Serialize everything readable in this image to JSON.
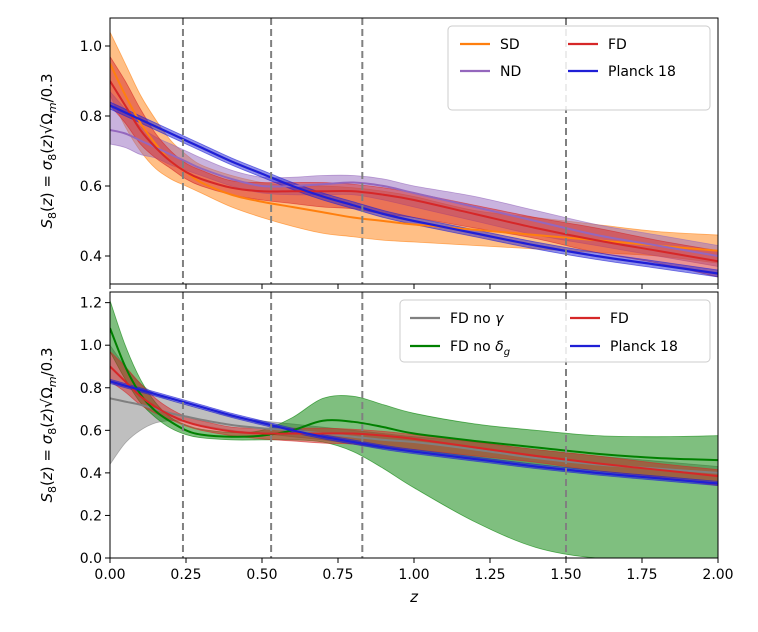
{
  "chart_data": [
    {
      "type": "line",
      "ylabel": "S₈(z) = σ₈(z)√(Ωₘ/0.3)",
      "xlabel": "",
      "xlim": [
        0.0,
        2.0
      ],
      "ylim": [
        0.32,
        1.08
      ],
      "yticks": [
        0.4,
        0.6,
        0.8,
        1.0
      ],
      "ytick_labels": [
        "0.4",
        "0.6",
        "0.8",
        "1.0"
      ],
      "vlines": [
        0.24,
        0.53,
        0.83,
        1.5
      ],
      "legend_position": "top-right",
      "legend_columns": 2,
      "x": [
        0.0,
        0.05,
        0.1,
        0.15,
        0.2,
        0.25,
        0.3,
        0.4,
        0.5,
        0.6,
        0.7,
        0.8,
        0.9,
        1.0,
        1.2,
        1.4,
        1.6,
        1.8,
        2.0
      ],
      "series": [
        {
          "name": "SD",
          "color": "#ff7f0e",
          "values": [
            0.95,
            0.86,
            0.78,
            0.72,
            0.67,
            0.64,
            0.61,
            0.575,
            0.555,
            0.54,
            0.525,
            0.51,
            0.5,
            0.49,
            0.475,
            0.46,
            0.445,
            0.43,
            0.415
          ],
          "lower": [
            0.86,
            0.77,
            0.7,
            0.65,
            0.62,
            0.6,
            0.58,
            0.54,
            0.51,
            0.485,
            0.465,
            0.455,
            0.445,
            0.44,
            0.43,
            0.42,
            0.41,
            0.4,
            0.38
          ],
          "upper": [
            1.04,
            0.95,
            0.86,
            0.79,
            0.73,
            0.69,
            0.66,
            0.63,
            0.61,
            0.6,
            0.6,
            0.595,
            0.585,
            0.57,
            0.53,
            0.51,
            0.49,
            0.47,
            0.46
          ]
        },
        {
          "name": "ND",
          "color": "#9467bd",
          "values": [
            0.76,
            0.75,
            0.73,
            0.71,
            0.69,
            0.67,
            0.65,
            0.62,
            0.6,
            0.6,
            0.605,
            0.61,
            0.6,
            0.58,
            0.54,
            0.5,
            0.46,
            0.43,
            0.4
          ],
          "lower": [
            0.72,
            0.71,
            0.69,
            0.68,
            0.66,
            0.645,
            0.63,
            0.6,
            0.58,
            0.575,
            0.575,
            0.575,
            0.56,
            0.54,
            0.5,
            0.46,
            0.43,
            0.4,
            0.37
          ],
          "upper": [
            0.87,
            0.82,
            0.77,
            0.74,
            0.72,
            0.7,
            0.68,
            0.645,
            0.625,
            0.625,
            0.63,
            0.63,
            0.62,
            0.6,
            0.57,
            0.53,
            0.49,
            0.46,
            0.43
          ]
        },
        {
          "name": "FD",
          "color": "#d62728",
          "values": [
            0.9,
            0.83,
            0.76,
            0.71,
            0.67,
            0.64,
            0.62,
            0.595,
            0.585,
            0.585,
            0.585,
            0.585,
            0.575,
            0.56,
            0.52,
            0.48,
            0.445,
            0.415,
            0.385
          ],
          "lower": [
            0.83,
            0.78,
            0.72,
            0.68,
            0.65,
            0.62,
            0.6,
            0.575,
            0.56,
            0.55,
            0.54,
            0.535,
            0.52,
            0.51,
            0.48,
            0.45,
            0.41,
            0.38,
            0.34
          ],
          "upper": [
            0.97,
            0.9,
            0.82,
            0.75,
            0.7,
            0.665,
            0.645,
            0.615,
            0.61,
            0.61,
            0.61,
            0.605,
            0.595,
            0.58,
            0.545,
            0.51,
            0.48,
            0.445,
            0.415
          ]
        },
        {
          "name": "Planck 18",
          "color": "#1f1fd6",
          "values": [
            0.83,
            0.81,
            0.79,
            0.77,
            0.75,
            0.73,
            0.71,
            0.67,
            0.635,
            0.6,
            0.57,
            0.545,
            0.52,
            0.5,
            0.465,
            0.43,
            0.4,
            0.375,
            0.35
          ],
          "lower": [
            0.82,
            0.8,
            0.78,
            0.76,
            0.74,
            0.72,
            0.7,
            0.66,
            0.625,
            0.59,
            0.56,
            0.535,
            0.51,
            0.49,
            0.455,
            0.42,
            0.39,
            0.365,
            0.34
          ],
          "upper": [
            0.84,
            0.82,
            0.8,
            0.78,
            0.76,
            0.74,
            0.72,
            0.68,
            0.645,
            0.61,
            0.58,
            0.555,
            0.53,
            0.51,
            0.475,
            0.44,
            0.41,
            0.385,
            0.36
          ]
        }
      ]
    },
    {
      "type": "line",
      "ylabel": "S₈(z) = σ₈(z)√(Ωₘ/0.3)",
      "xlabel": "z",
      "xlim": [
        0.0,
        2.0
      ],
      "ylim": [
        0.0,
        1.25
      ],
      "yticks": [
        0.0,
        0.2,
        0.4,
        0.6,
        0.8,
        1.0,
        1.2
      ],
      "ytick_labels": [
        "0.0",
        "0.2",
        "0.4",
        "0.6",
        "0.8",
        "1.0",
        "1.2"
      ],
      "xticks": [
        0.0,
        0.25,
        0.5,
        0.75,
        1.0,
        1.25,
        1.5,
        1.75,
        2.0
      ],
      "xtick_labels": [
        "0.00",
        "0.25",
        "0.50",
        "0.75",
        "1.00",
        "1.25",
        "1.50",
        "1.75",
        "2.00"
      ],
      "vlines": [
        0.24,
        0.53,
        0.83,
        1.5
      ],
      "legend_position": "top-right",
      "legend_columns": 2,
      "x": [
        0.0,
        0.05,
        0.1,
        0.15,
        0.2,
        0.25,
        0.3,
        0.4,
        0.5,
        0.6,
        0.7,
        0.8,
        0.9,
        1.0,
        1.2,
        1.4,
        1.6,
        1.8,
        2.0
      ],
      "series": [
        {
          "name": "FD no γ",
          "color": "#808080",
          "values": [
            0.75,
            0.735,
            0.72,
            0.7,
            0.68,
            0.665,
            0.65,
            0.625,
            0.61,
            0.6,
            0.585,
            0.57,
            0.555,
            0.545,
            0.51,
            0.47,
            0.44,
            0.42,
            0.4
          ],
          "lower": [
            0.44,
            0.54,
            0.6,
            0.635,
            0.645,
            0.64,
            0.625,
            0.6,
            0.585,
            0.57,
            0.555,
            0.535,
            0.515,
            0.5,
            0.47,
            0.44,
            0.41,
            0.385,
            0.36
          ],
          "upper": [
            1.0,
            0.9,
            0.82,
            0.77,
            0.74,
            0.72,
            0.7,
            0.665,
            0.645,
            0.63,
            0.615,
            0.6,
            0.585,
            0.57,
            0.545,
            0.51,
            0.48,
            0.455,
            0.43
          ]
        },
        {
          "name": "FD no δ_g",
          "color": "#008000",
          "values": [
            1.08,
            0.9,
            0.77,
            0.69,
            0.64,
            0.6,
            0.58,
            0.57,
            0.575,
            0.6,
            0.645,
            0.64,
            0.615,
            0.585,
            0.55,
            0.52,
            0.49,
            0.47,
            0.46
          ],
          "lower": [
            0.97,
            0.84,
            0.73,
            0.66,
            0.61,
            0.58,
            0.565,
            0.555,
            0.555,
            0.555,
            0.545,
            0.5,
            0.42,
            0.33,
            0.17,
            0.05,
            0.0,
            0.0,
            0.0
          ],
          "upper": [
            1.21,
            1.0,
            0.84,
            0.73,
            0.66,
            0.625,
            0.605,
            0.59,
            0.6,
            0.66,
            0.75,
            0.76,
            0.72,
            0.68,
            0.63,
            0.6,
            0.575,
            0.57,
            0.575
          ]
        },
        {
          "name": "FD",
          "color": "#d62728",
          "values": [
            0.9,
            0.83,
            0.76,
            0.71,
            0.67,
            0.64,
            0.62,
            0.595,
            0.585,
            0.585,
            0.585,
            0.585,
            0.575,
            0.56,
            0.52,
            0.48,
            0.445,
            0.415,
            0.385
          ],
          "lower": [
            0.83,
            0.78,
            0.72,
            0.68,
            0.65,
            0.62,
            0.6,
            0.575,
            0.56,
            0.55,
            0.54,
            0.535,
            0.52,
            0.51,
            0.48,
            0.45,
            0.41,
            0.38,
            0.34
          ],
          "upper": [
            0.97,
            0.9,
            0.82,
            0.75,
            0.7,
            0.665,
            0.645,
            0.615,
            0.61,
            0.61,
            0.61,
            0.605,
            0.595,
            0.58,
            0.545,
            0.51,
            0.48,
            0.445,
            0.415
          ]
        },
        {
          "name": "Planck 18",
          "color": "#1f1fd6",
          "values": [
            0.83,
            0.81,
            0.79,
            0.77,
            0.75,
            0.73,
            0.71,
            0.67,
            0.635,
            0.6,
            0.57,
            0.545,
            0.52,
            0.5,
            0.465,
            0.43,
            0.4,
            0.375,
            0.35
          ],
          "lower": [
            0.82,
            0.8,
            0.78,
            0.76,
            0.74,
            0.72,
            0.7,
            0.66,
            0.625,
            0.59,
            0.56,
            0.535,
            0.51,
            0.49,
            0.455,
            0.42,
            0.39,
            0.365,
            0.34
          ],
          "upper": [
            0.84,
            0.82,
            0.8,
            0.78,
            0.76,
            0.74,
            0.72,
            0.68,
            0.645,
            0.61,
            0.58,
            0.555,
            0.53,
            0.51,
            0.475,
            0.44,
            0.41,
            0.385,
            0.36
          ]
        }
      ]
    }
  ]
}
